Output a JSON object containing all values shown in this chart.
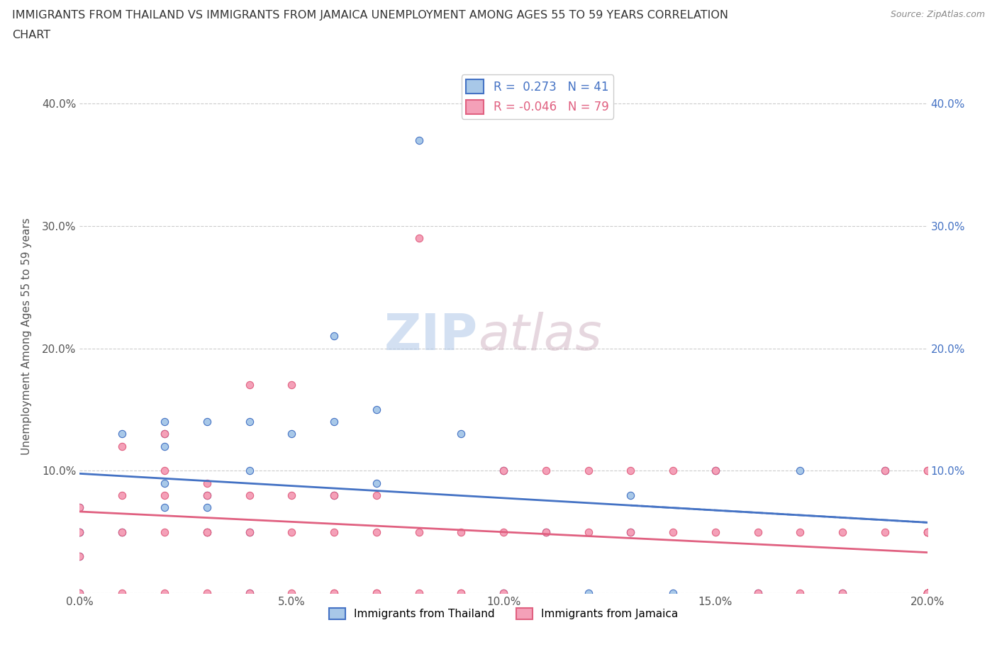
{
  "title_line1": "IMMIGRANTS FROM THAILAND VS IMMIGRANTS FROM JAMAICA UNEMPLOYMENT AMONG AGES 55 TO 59 YEARS CORRELATION",
  "title_line2": "CHART",
  "source": "Source: ZipAtlas.com",
  "ylabel": "Unemployment Among Ages 55 to 59 years",
  "xlim": [
    0.0,
    0.2
  ],
  "ylim": [
    0.0,
    0.42
  ],
  "x_ticks": [
    0.0,
    0.05,
    0.1,
    0.15,
    0.2
  ],
  "y_ticks": [
    0.0,
    0.1,
    0.2,
    0.3,
    0.4
  ],
  "x_tick_labels": [
    "0.0%",
    "5.0%",
    "10.0%",
    "15.0%",
    "20.0%"
  ],
  "y_tick_labels": [
    "",
    "10.0%",
    "20.0%",
    "30.0%",
    "40.0%"
  ],
  "watermark_zip": "ZIP",
  "watermark_atlas": "atlas",
  "thailand_color": "#a8c8e8",
  "jamaica_color": "#f4a0b8",
  "thailand_line_color": "#4472c4",
  "jamaica_line_color": "#e06080",
  "thailand_R": "0.273",
  "thailand_N": "41",
  "jamaica_R": "-0.046",
  "jamaica_N": "79",
  "thailand_scatter_x": [
    0.0,
    0.0,
    0.0,
    0.0,
    0.0,
    0.01,
    0.01,
    0.02,
    0.02,
    0.02,
    0.02,
    0.02,
    0.03,
    0.03,
    0.03,
    0.03,
    0.04,
    0.04,
    0.04,
    0.04,
    0.05,
    0.06,
    0.06,
    0.06,
    0.07,
    0.07,
    0.08,
    0.09,
    0.1,
    0.1,
    0.11,
    0.12,
    0.13,
    0.13,
    0.14,
    0.15,
    0.16,
    0.17,
    0.18,
    0.19,
    0.2
  ],
  "thailand_scatter_y": [
    0.05,
    0.03,
    0.0,
    0.07,
    0.05,
    0.05,
    0.13,
    0.14,
    0.09,
    0.12,
    0.13,
    0.07,
    0.14,
    0.05,
    0.07,
    0.08,
    0.1,
    0.05,
    0.14,
    0.0,
    0.13,
    0.21,
    0.14,
    0.08,
    0.15,
    0.09,
    0.37,
    0.13,
    0.1,
    0.0,
    0.05,
    0.0,
    0.05,
    0.08,
    0.0,
    0.1,
    0.0,
    0.1,
    0.0,
    0.1,
    0.0
  ],
  "jamaica_scatter_x": [
    0.0,
    0.0,
    0.0,
    0.0,
    0.01,
    0.01,
    0.01,
    0.01,
    0.02,
    0.02,
    0.02,
    0.02,
    0.02,
    0.03,
    0.03,
    0.03,
    0.03,
    0.03,
    0.04,
    0.04,
    0.04,
    0.04,
    0.05,
    0.05,
    0.05,
    0.05,
    0.06,
    0.06,
    0.06,
    0.06,
    0.07,
    0.07,
    0.07,
    0.07,
    0.08,
    0.08,
    0.08,
    0.09,
    0.09,
    0.09,
    0.1,
    0.1,
    0.1,
    0.11,
    0.11,
    0.12,
    0.12,
    0.13,
    0.13,
    0.14,
    0.14,
    0.15,
    0.15,
    0.16,
    0.16,
    0.17,
    0.17,
    0.18,
    0.18,
    0.19,
    0.19,
    0.2,
    0.2,
    0.2,
    0.2,
    0.2,
    0.2,
    0.2,
    0.2,
    0.2,
    0.2,
    0.2,
    0.2,
    0.2,
    0.2,
    0.2,
    0.2,
    0.2,
    0.2
  ],
  "jamaica_scatter_y": [
    0.05,
    0.03,
    0.0,
    0.07,
    0.05,
    0.08,
    0.12,
    0.0,
    0.1,
    0.08,
    0.05,
    0.13,
    0.0,
    0.08,
    0.05,
    0.09,
    0.05,
    0.0,
    0.17,
    0.08,
    0.05,
    0.0,
    0.17,
    0.08,
    0.05,
    0.0,
    0.08,
    0.05,
    0.0,
    0.0,
    0.08,
    0.05,
    0.0,
    0.0,
    0.29,
    0.05,
    0.0,
    0.05,
    0.0,
    0.0,
    0.1,
    0.05,
    0.0,
    0.1,
    0.05,
    0.1,
    0.05,
    0.1,
    0.05,
    0.1,
    0.05,
    0.1,
    0.05,
    0.05,
    0.0,
    0.05,
    0.0,
    0.05,
    0.0,
    0.1,
    0.05,
    0.1,
    0.05,
    0.0,
    0.05,
    0.0,
    0.0,
    0.0,
    0.0,
    0.1,
    0.05,
    0.0,
    0.05,
    0.0,
    0.0,
    0.0,
    0.0,
    0.0,
    0.0
  ],
  "background_color": "#ffffff",
  "grid_color": "#cccccc"
}
